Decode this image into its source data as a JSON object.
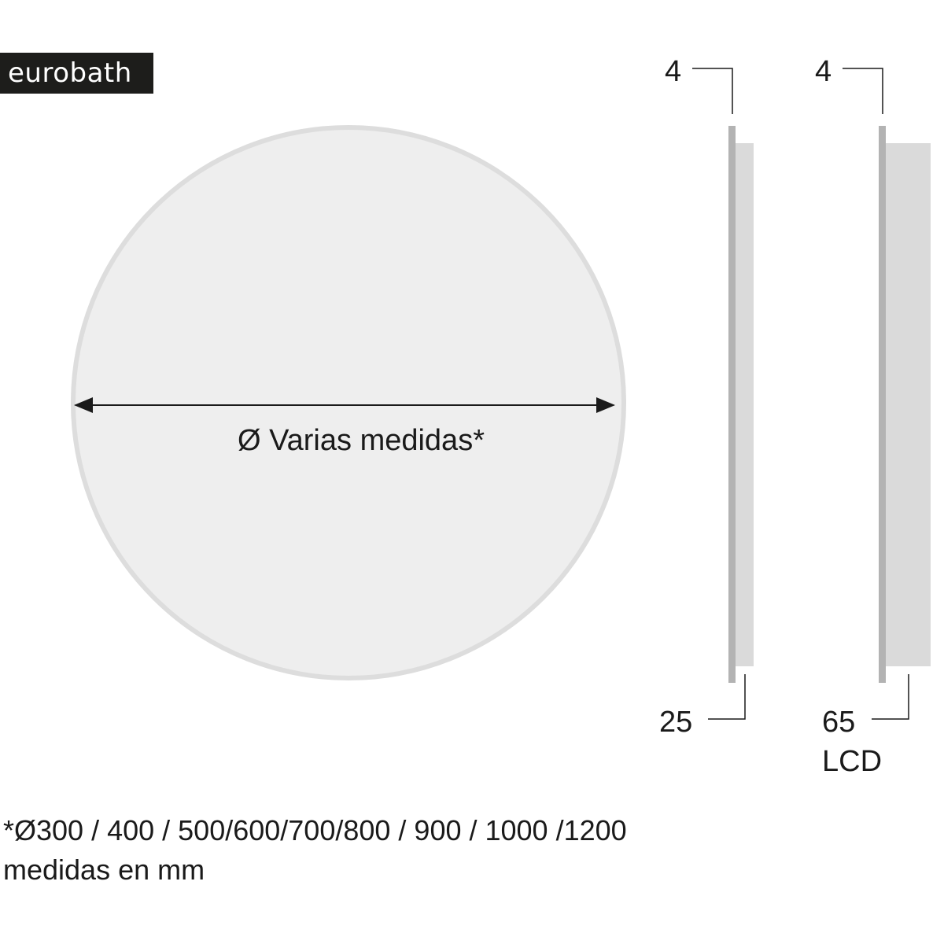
{
  "logo": {
    "text": "eurobath"
  },
  "front_view": {
    "diameter_label": "Ø Varias medidas*"
  },
  "side_view_standard": {
    "thickness_top": "4",
    "depth_bottom": "25"
  },
  "side_view_lcd": {
    "thickness_top": "4",
    "depth_bottom": "65",
    "variant": "LCD"
  },
  "footnote": {
    "sizes": "*Ø300 / 400 / 500/600/700/800 / 900 / 1000 /1200",
    "units": "medidas en mm"
  },
  "colors": {
    "mirror_fill": "#eeeeee",
    "mirror_edge": "#dddddd",
    "frame_bar": "#b3b3b3",
    "back_panel": "#dadada"
  }
}
